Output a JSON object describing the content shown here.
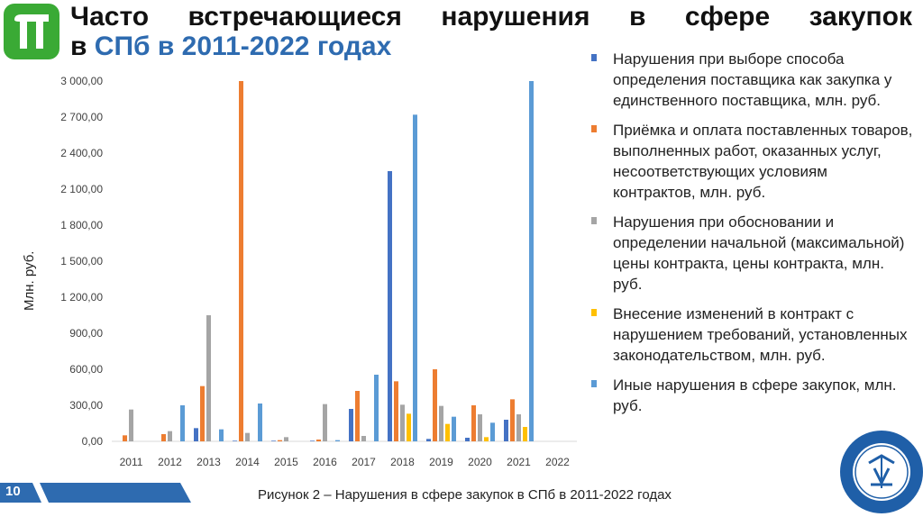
{
  "header": {
    "title_line1": "Часто встречающиеся нарушения в сфере закупок",
    "title_line2_prefix": "в",
    "title_line2_blue": "СПб в 2011-2022 годах"
  },
  "logo": {
    "icon": "pi-letter-logo-icon",
    "color": "#3aaa35"
  },
  "footer": {
    "page_number": "10",
    "caption": "Рисунок 2 – Нарушения в сфере закупок в СПб в 2011-2022 годах",
    "bar_color": "#2e6bb0"
  },
  "seal": {
    "icon": "audit-chamber-seal-icon",
    "color": "#1f5fa8"
  },
  "chart_data": {
    "type": "bar",
    "ylabel": "Млн. руб.",
    "ylim": [
      0,
      3000
    ],
    "yticks": [
      "0,00",
      "300,00",
      "600,00",
      "900,00",
      "1 200,00",
      "1 500,00",
      "1 800,00",
      "2 100,00",
      "2 400,00",
      "2 700,00",
      "3 000,00"
    ],
    "categories": [
      "2011",
      "2012",
      "2013",
      "2014",
      "2015",
      "2016",
      "2017",
      "2018",
      "2019",
      "2020",
      "2021",
      "2022"
    ],
    "series": [
      {
        "name": "Нарушения при выборе способа определения поставщика как закупка у единственного поставщика, млн. руб.",
        "color": "#4472c4",
        "values": [
          0,
          0,
          110,
          5,
          5,
          5,
          270,
          2250,
          20,
          30,
          180,
          0
        ]
      },
      {
        "name": "Приёмка и оплата поставленных товаров, выполненных работ, оказанных услуг, несоответствующих условиям контрактов, млн. руб.",
        "color": "#ed7d31",
        "values": [
          50,
          60,
          460,
          3000,
          10,
          15,
          420,
          500,
          600,
          300,
          350,
          0
        ]
      },
      {
        "name": "Нарушения при обосновании и определении начальной (максимальной) цены контракта, цены контракта, млн. руб.",
        "color": "#a5a5a5",
        "values": [
          265,
          85,
          1050,
          70,
          35,
          310,
          45,
          305,
          295,
          225,
          225,
          0
        ]
      },
      {
        "name": "Внесение изменений в контракт с нарушением требований, установленных законодательством, млн. руб.",
        "color": "#ffc000",
        "values": [
          0,
          0,
          0,
          0,
          0,
          0,
          0,
          230,
          145,
          35,
          120,
          0
        ]
      },
      {
        "name": "Иные нарушения в сфере закупок, млн. руб.",
        "color": "#5b9bd5",
        "values": [
          0,
          300,
          100,
          315,
          0,
          10,
          555,
          2720,
          205,
          155,
          3000,
          0
        ]
      }
    ]
  }
}
